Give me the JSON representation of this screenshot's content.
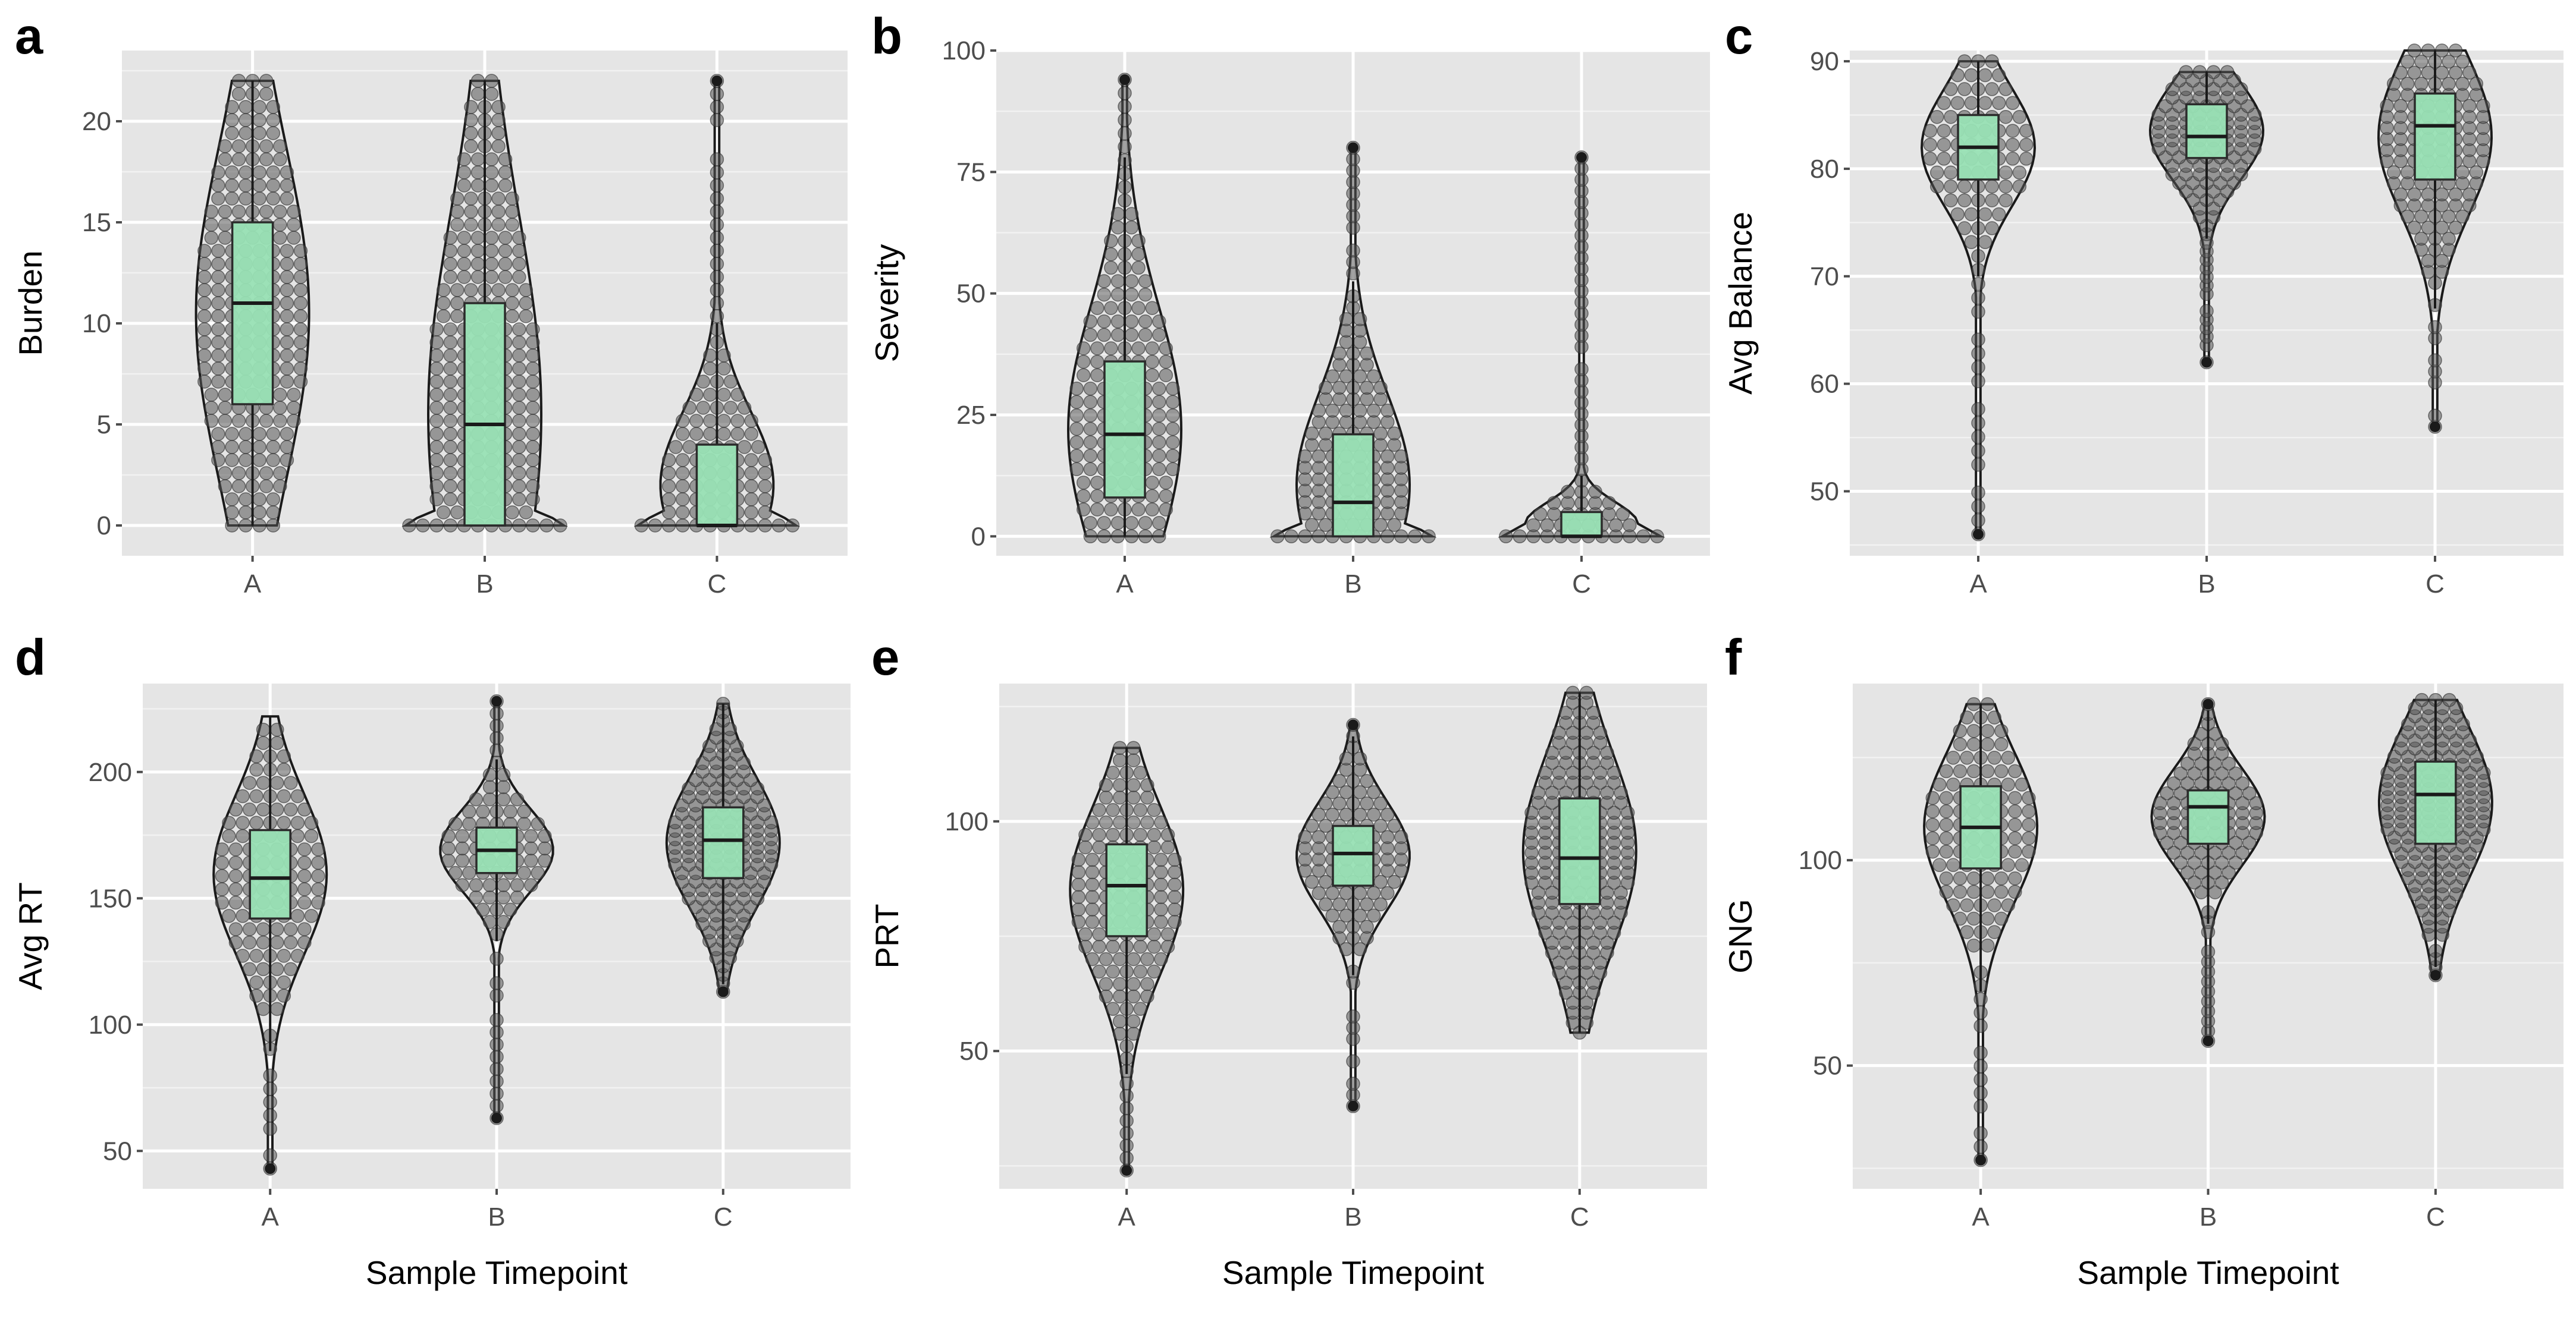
{
  "chart_data": [
    {
      "tag": "a",
      "type": "violin",
      "xlabel": "",
      "ylabel": "Burden",
      "categories": [
        "A",
        "B",
        "C"
      ],
      "ylim": [
        -1.5,
        23.5
      ],
      "yticks": [
        "0",
        "5",
        "10",
        "15",
        "20"
      ],
      "ytick_values": [
        0,
        5,
        10,
        15,
        20
      ],
      "groups": [
        {
          "name": "A",
          "min": 0,
          "q1": 6,
          "median": 11,
          "q3": 15,
          "max": 22
        },
        {
          "name": "B",
          "min": 0,
          "q1": 0,
          "median": 5,
          "q3": 11,
          "max": 22
        },
        {
          "name": "C",
          "min": 0,
          "q1": 0,
          "median": 0,
          "q3": 4,
          "max": 22
        }
      ]
    },
    {
      "tag": "b",
      "type": "violin",
      "xlabel": "",
      "ylabel": "Severity",
      "categories": [
        "A",
        "B",
        "C"
      ],
      "ylim": [
        -4,
        100
      ],
      "yticks": [
        "0",
        "25",
        "50",
        "75",
        "100"
      ],
      "ytick_values": [
        0,
        25,
        50,
        75,
        100
      ],
      "groups": [
        {
          "name": "A",
          "min": 0,
          "q1": 8,
          "median": 21,
          "q3": 36,
          "max": 94
        },
        {
          "name": "B",
          "min": 0,
          "q1": 0,
          "median": 7,
          "q3": 21,
          "max": 80
        },
        {
          "name": "C",
          "min": 0,
          "q1": 0,
          "median": 0,
          "q3": 5,
          "max": 78
        }
      ]
    },
    {
      "tag": "c",
      "type": "violin",
      "xlabel": "",
      "ylabel": "Avg Balance",
      "categories": [
        "A",
        "B",
        "C"
      ],
      "ylim": [
        44,
        91
      ],
      "yticks": [
        "50",
        "60",
        "70",
        "80",
        "90"
      ],
      "ytick_values": [
        50,
        60,
        70,
        80,
        90
      ],
      "groups": [
        {
          "name": "A",
          "min": 46,
          "q1": 79,
          "median": 82,
          "q3": 85,
          "max": 90
        },
        {
          "name": "B",
          "min": 62,
          "q1": 81,
          "median": 83,
          "q3": 86,
          "max": 89
        },
        {
          "name": "C",
          "min": 56,
          "q1": 79,
          "median": 84,
          "q3": 87,
          "max": 91
        }
      ]
    },
    {
      "tag": "d",
      "type": "violin",
      "xlabel": "Sample Timepoint",
      "ylabel": "Avg RT",
      "categories": [
        "A",
        "B",
        "C"
      ],
      "ylim": [
        35,
        235
      ],
      "yticks": [
        "50",
        "100",
        "150",
        "200"
      ],
      "ytick_values": [
        50,
        100,
        150,
        200
      ],
      "groups": [
        {
          "name": "A",
          "min": 43,
          "q1": 142,
          "median": 158,
          "q3": 177,
          "max": 222
        },
        {
          "name": "B",
          "min": 63,
          "q1": 160,
          "median": 169,
          "q3": 178,
          "max": 228
        },
        {
          "name": "C",
          "min": 113,
          "q1": 158,
          "median": 173,
          "q3": 186,
          "max": 227
        }
      ]
    },
    {
      "tag": "e",
      "type": "violin",
      "xlabel": "Sample Timepoint",
      "ylabel": "PRT",
      "categories": [
        "A",
        "B",
        "C"
      ],
      "ylim": [
        20,
        130
      ],
      "yticks": [
        "50",
        "100"
      ],
      "ytick_values": [
        50,
        100
      ],
      "groups": [
        {
          "name": "A",
          "min": 24,
          "q1": 75,
          "median": 86,
          "q3": 95,
          "max": 116
        },
        {
          "name": "B",
          "min": 38,
          "q1": 86,
          "median": 93,
          "q3": 99,
          "max": 121
        },
        {
          "name": "C",
          "min": 54,
          "q1": 82,
          "median": 92,
          "q3": 105,
          "max": 128
        }
      ]
    },
    {
      "tag": "f",
      "type": "violin",
      "xlabel": "Sample Timepoint",
      "ylabel": "GNG",
      "categories": [
        "A",
        "B",
        "C"
      ],
      "ylim": [
        20,
        143
      ],
      "yticks": [
        "50",
        "100"
      ],
      "ytick_values": [
        50,
        100
      ],
      "groups": [
        {
          "name": "A",
          "min": 27,
          "q1": 98,
          "median": 108,
          "q3": 118,
          "max": 138
        },
        {
          "name": "B",
          "min": 56,
          "q1": 104,
          "median": 113,
          "q3": 117,
          "max": 138
        },
        {
          "name": "C",
          "min": 72,
          "q1": 104,
          "median": 116,
          "q3": 124,
          "max": 139
        }
      ]
    }
  ]
}
